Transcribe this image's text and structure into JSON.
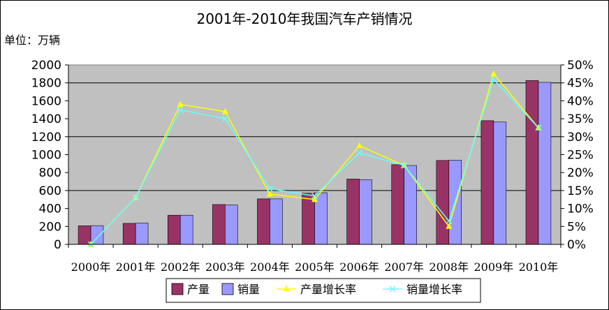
{
  "chart_data": {
    "type": "bar",
    "title": "2001年-2010年我国汽车产销情况",
    "unit_label": "单位：万辆",
    "categories": [
      "2000年",
      "2001年",
      "2002年",
      "2003年",
      "2004年",
      "2005年",
      "2006年",
      "2007年",
      "2008年",
      "2009年",
      "2010年"
    ],
    "y_left": {
      "min": 0,
      "max": 2000,
      "ticks": [
        "0",
        "200",
        "400",
        "600",
        "800",
        "1000",
        "1200",
        "1400",
        "1600",
        "1800",
        "2000"
      ]
    },
    "y_right": {
      "min": 0,
      "max": 0.5,
      "ticks": [
        "0%",
        "5%",
        "10%",
        "15%",
        "20%",
        "25%",
        "30%",
        "35%",
        "40%",
        "45%",
        "50%"
      ]
    },
    "series": [
      {
        "name": "产量",
        "kind": "bar",
        "axis": "left",
        "color": "#993366",
        "values": [
          207,
          234,
          325,
          444,
          507,
          571,
          728,
          888,
          935,
          1379,
          1826
        ]
      },
      {
        "name": "销量",
        "kind": "bar",
        "axis": "left",
        "color": "#9999ff",
        "values": [
          209,
          237,
          325,
          439,
          507,
          576,
          722,
          879,
          938,
          1364,
          1806
        ]
      },
      {
        "name": "产量增长率",
        "kind": "line",
        "axis": "right",
        "color": "#ffff00",
        "marker": "triangle",
        "values": [
          0.0,
          0.13,
          0.39,
          0.37,
          0.14,
          0.125,
          0.275,
          0.22,
          0.05,
          0.475,
          0.325
        ]
      },
      {
        "name": "销量增长率",
        "kind": "line",
        "axis": "right",
        "color": "#66ffff",
        "marker": "x",
        "values": [
          0.0,
          0.13,
          0.375,
          0.35,
          0.155,
          0.135,
          0.255,
          0.22,
          0.065,
          0.46,
          0.325
        ]
      }
    ],
    "grid": true,
    "legend_position": "bottom"
  }
}
